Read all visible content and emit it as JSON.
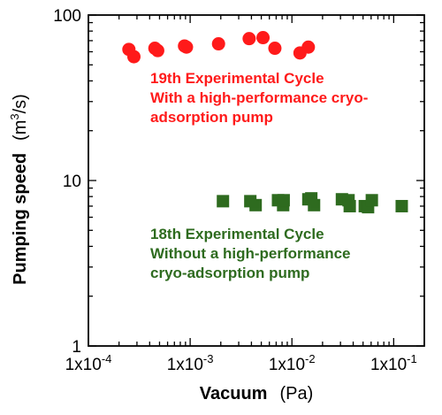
{
  "chart_data": {
    "type": "scatter",
    "title": "",
    "xlabel": "Vacuum",
    "xunit": "(Pa)",
    "ylabel": "Pumping speed",
    "yunit_base": "(m",
    "yunit_sup": "3",
    "yunit_tail": "/s)",
    "xscale": "log",
    "yscale": "log",
    "xlim": [
      0.0001,
      0.2
    ],
    "ylim": [
      1,
      100
    ],
    "xticks": [
      {
        "value": 0.0001,
        "base": "1x10",
        "exp": "-4"
      },
      {
        "value": 0.001,
        "base": "1x10",
        "exp": "-3"
      },
      {
        "value": 0.01,
        "base": "1x10",
        "exp": "-2"
      },
      {
        "value": 0.1,
        "base": "1x10",
        "exp": "-1"
      }
    ],
    "yticks": [
      {
        "value": 1,
        "label": "1"
      },
      {
        "value": 10,
        "label": "10"
      },
      {
        "value": 100,
        "label": "100"
      }
    ],
    "grid": false,
    "series": [
      {
        "marker": "circle",
        "color": "#ff1a1a",
        "points": [
          {
            "x": 0.00025,
            "y": 62
          },
          {
            "x": 0.00028,
            "y": 56
          },
          {
            "x": 0.00045,
            "y": 63
          },
          {
            "x": 0.00048,
            "y": 61
          },
          {
            "x": 0.00088,
            "y": 65
          },
          {
            "x": 0.00092,
            "y": 64
          },
          {
            "x": 0.0019,
            "y": 67
          },
          {
            "x": 0.0038,
            "y": 72
          },
          {
            "x": 0.0052,
            "y": 73
          },
          {
            "x": 0.0068,
            "y": 63
          },
          {
            "x": 0.012,
            "y": 59
          },
          {
            "x": 0.0145,
            "y": 64
          }
        ]
      },
      {
        "marker": "square",
        "color": "#2e6b1f",
        "points": [
          {
            "x": 0.0021,
            "y": 7.5
          },
          {
            "x": 0.0039,
            "y": 7.5
          },
          {
            "x": 0.0044,
            "y": 7.1
          },
          {
            "x": 0.0073,
            "y": 7.6
          },
          {
            "x": 0.0082,
            "y": 7.1
          },
          {
            "x": 0.0083,
            "y": 7.6
          },
          {
            "x": 0.0145,
            "y": 7.7
          },
          {
            "x": 0.0155,
            "y": 7.8
          },
          {
            "x": 0.0165,
            "y": 7.1
          },
          {
            "x": 0.031,
            "y": 7.7
          },
          {
            "x": 0.036,
            "y": 7.6
          },
          {
            "x": 0.037,
            "y": 7.0
          },
          {
            "x": 0.052,
            "y": 7.0
          },
          {
            "x": 0.056,
            "y": 6.9
          },
          {
            "x": 0.061,
            "y": 7.6
          },
          {
            "x": 0.12,
            "y": 7.0
          }
        ]
      }
    ],
    "annotations": [
      {
        "lines": [
          "19th Experimental Cycle",
          "With a high-performance cryo-",
          "adsorption pump"
        ],
        "color": "#ff1a1a"
      },
      {
        "lines": [
          "18th Experimental Cycle",
          "Without a high-performance",
          "cryo-adsorption pump"
        ],
        "color": "#2e6b1f"
      }
    ]
  }
}
